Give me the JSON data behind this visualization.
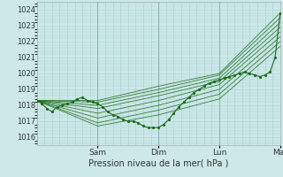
{
  "bg_color": "#cce8e8",
  "grid_color": "#aad0d0",
  "line_color": "#1a6b1a",
  "marker_color": "#1a6b1a",
  "ylabel_ticks": [
    1016,
    1017,
    1018,
    1019,
    1020,
    1021,
    1022,
    1023,
    1024
  ],
  "ylim": [
    1015.5,
    1024.5
  ],
  "xlim": [
    0,
    96
  ],
  "xlabel": "Pression niveau de la mer( hPa )",
  "day_ticks": [
    24,
    48,
    72,
    96
  ],
  "day_labels": [
    "Sam",
    "Dim",
    "Lun",
    "Mar"
  ],
  "vline_positions": [
    24,
    48,
    72,
    96
  ],
  "ensemble_lines": [
    [
      1018.3,
      1018.3,
      1019.2,
      1020.0,
      1023.8
    ],
    [
      1018.3,
      1018.2,
      1019.0,
      1019.9,
      1023.5
    ],
    [
      1018.3,
      1018.0,
      1018.8,
      1019.7,
      1023.2
    ],
    [
      1018.3,
      1017.8,
      1018.6,
      1019.5,
      1022.9
    ],
    [
      1018.3,
      1017.5,
      1018.3,
      1019.3,
      1022.6
    ],
    [
      1018.3,
      1017.2,
      1018.0,
      1019.0,
      1022.3
    ],
    [
      1018.3,
      1016.9,
      1017.7,
      1018.7,
      1022.0
    ],
    [
      1018.3,
      1016.7,
      1017.4,
      1018.4,
      1021.7
    ]
  ],
  "ensemble_x": [
    0,
    24,
    48,
    72,
    96
  ],
  "main_series_x": [
    0,
    2,
    4,
    6,
    8,
    10,
    12,
    14,
    16,
    18,
    20,
    22,
    24,
    26,
    28,
    30,
    32,
    34,
    36,
    38,
    40,
    42,
    44,
    46,
    48,
    50,
    52,
    54,
    56,
    58,
    60,
    62,
    64,
    66,
    68,
    70,
    72,
    74,
    76,
    78,
    80,
    82,
    84,
    86,
    88,
    90,
    92,
    94,
    96
  ],
  "main_series_y": [
    1018.3,
    1018.1,
    1017.8,
    1017.6,
    1017.9,
    1018.0,
    1018.1,
    1018.2,
    1018.4,
    1018.5,
    1018.3,
    1018.2,
    1018.1,
    1017.9,
    1017.6,
    1017.4,
    1017.3,
    1017.1,
    1017.0,
    1017.0,
    1016.9,
    1016.7,
    1016.6,
    1016.6,
    1016.6,
    1016.8,
    1017.1,
    1017.5,
    1017.9,
    1018.2,
    1018.5,
    1018.8,
    1019.0,
    1019.2,
    1019.4,
    1019.5,
    1019.6,
    1019.7,
    1019.8,
    1019.9,
    1020.0,
    1020.1,
    1020.0,
    1019.9,
    1019.8,
    1019.9,
    1020.1,
    1021.0,
    1023.8
  ]
}
